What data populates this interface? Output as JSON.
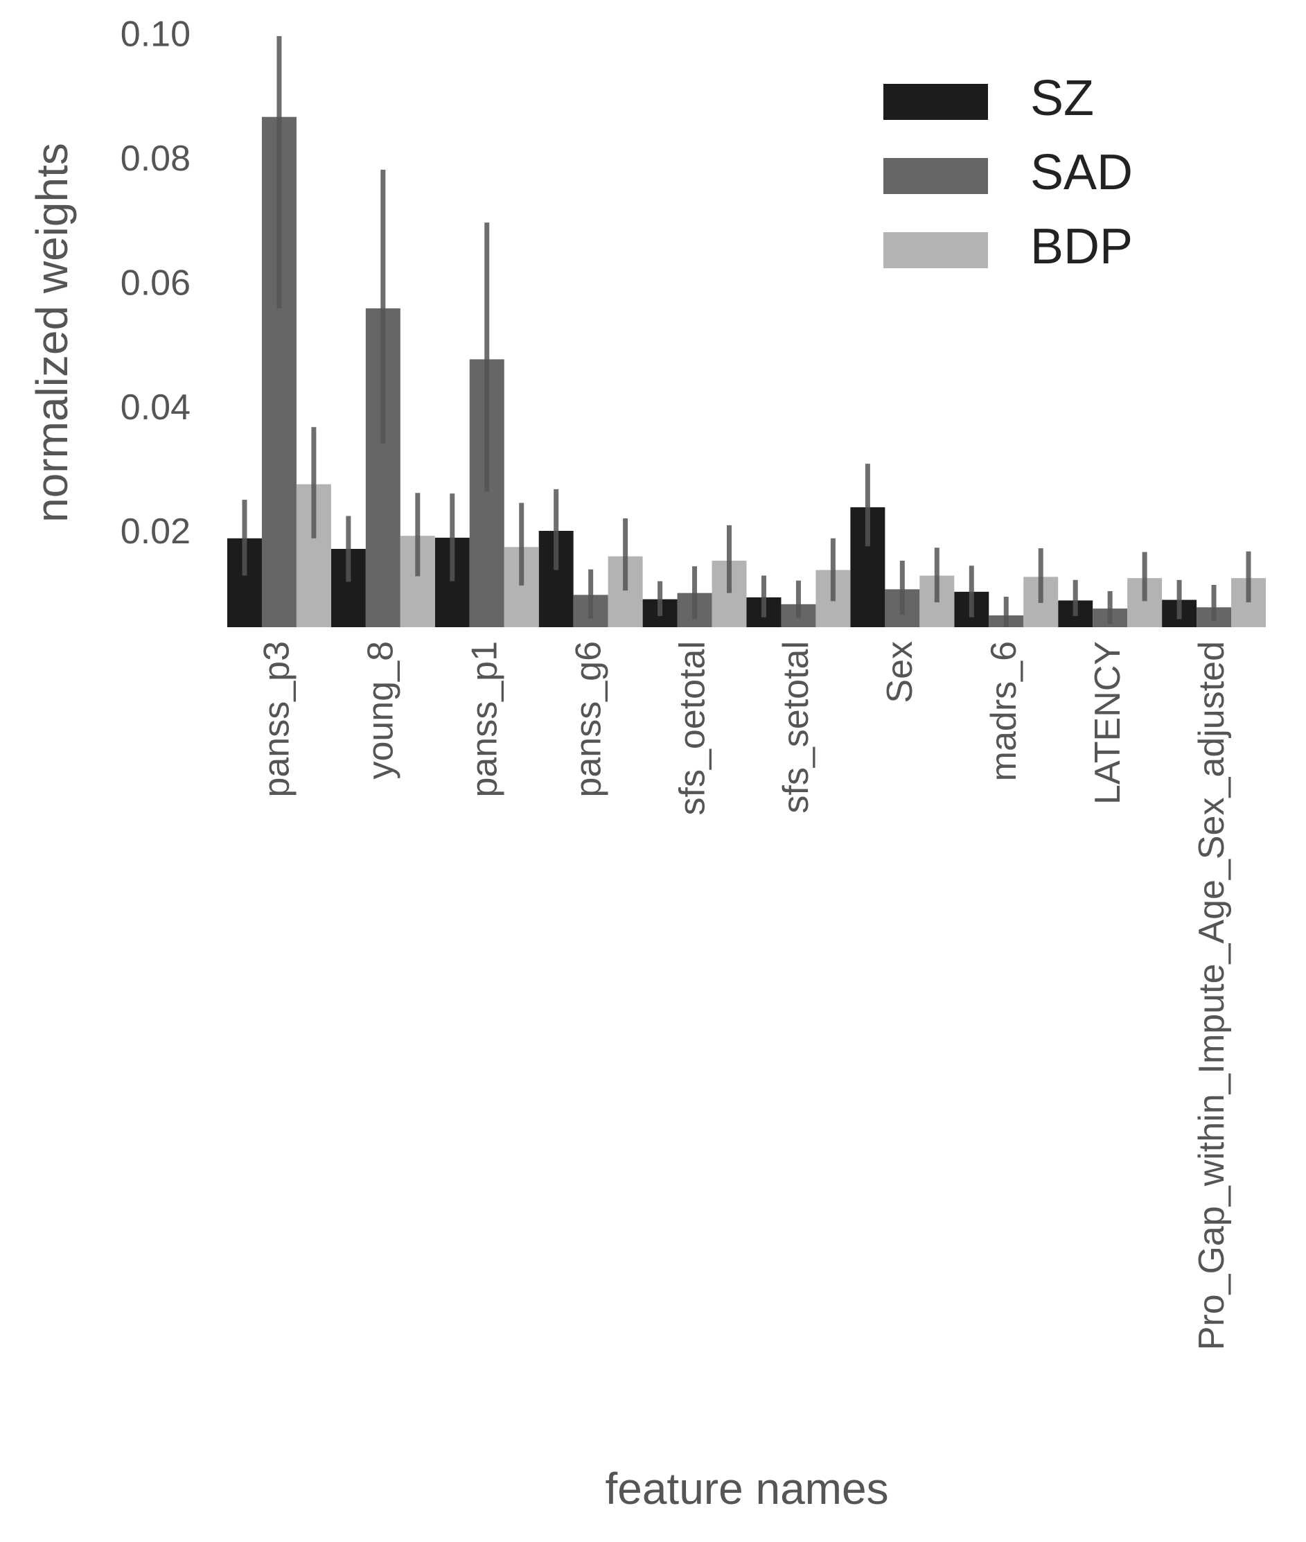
{
  "chart_data": {
    "type": "bar",
    "xlabel": "feature names",
    "ylabel": "normalized weights",
    "ylim": [
      0.005,
      0.1
    ],
    "yticks": [
      0.02,
      0.04,
      0.06,
      0.08,
      0.1
    ],
    "ytick_labels": [
      "0.02",
      "0.04",
      "0.06",
      "0.08",
      "0.10"
    ],
    "grid": false,
    "legend_position": "top-right",
    "categories": [
      "panss_p3",
      "young_8",
      "panss_p1",
      "panss_g6",
      "sfs_oetotal",
      "sfs_setotal",
      "Sex",
      "madrs_6",
      "LATENCY",
      "Pro_Gap_within_Impute_Age_Sex_adjusted"
    ],
    "series": [
      {
        "name": "SZ",
        "color": "#1c1c1c",
        "values": [
          0.0193,
          0.0176,
          0.0194,
          0.0205,
          0.0095,
          0.0098,
          0.0243,
          0.0107,
          0.0093,
          0.0094
        ],
        "error_low": [
          0.0133,
          0.0123,
          0.0124,
          0.0142,
          0.0068,
          0.0066,
          0.018,
          0.0066,
          0.0068,
          0.0063
        ],
        "error_high": [
          0.0255,
          0.0229,
          0.0265,
          0.0272,
          0.0124,
          0.0133,
          0.0313,
          0.0149,
          0.0126,
          0.0126
        ]
      },
      {
        "name": "SAD",
        "color": "#666666",
        "values": [
          0.0871,
          0.0563,
          0.0481,
          0.0102,
          0.0105,
          0.0087,
          0.0111,
          0.0069,
          0.008,
          0.0082
        ],
        "error_low": [
          0.0563,
          0.0345,
          0.0268,
          0.0064,
          0.0063,
          0.0065,
          0.007,
          0.005,
          0.0055,
          0.006
        ],
        "error_high": [
          0.1001,
          0.0786,
          0.0701,
          0.0143,
          0.0148,
          0.0125,
          0.0157,
          0.0099,
          0.0108,
          0.0118
        ]
      },
      {
        "name": "BDP",
        "color": "#b3b3b3",
        "values": [
          0.028,
          0.0197,
          0.0179,
          0.0164,
          0.0157,
          0.0142,
          0.0133,
          0.0131,
          0.0129,
          0.0129
        ],
        "error_low": [
          0.0193,
          0.0132,
          0.0117,
          0.0109,
          0.0105,
          0.0092,
          0.009,
          0.0089,
          0.0092,
          0.009
        ],
        "error_high": [
          0.0372,
          0.0266,
          0.025,
          0.0225,
          0.0214,
          0.0193,
          0.0178,
          0.0177,
          0.0171,
          0.0172
        ]
      }
    ]
  }
}
